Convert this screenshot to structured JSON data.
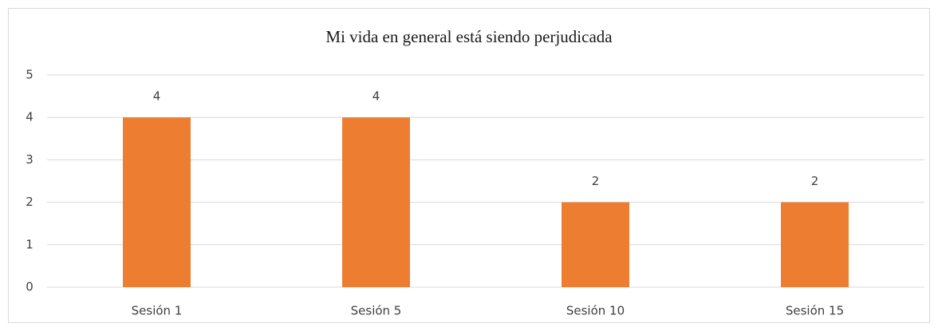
{
  "chart_data": {
    "type": "bar",
    "title": "Mi vida en general está siendo perjudicada",
    "categories": [
      "Sesión 1",
      "Sesión 5",
      "Sesión 10",
      "Sesión 15"
    ],
    "values": [
      4,
      4,
      2,
      2
    ],
    "color": "#ed7d31",
    "ylim": [
      0,
      5
    ],
    "yticks": [
      0,
      1,
      2,
      3,
      4,
      5
    ],
    "grid": true
  }
}
